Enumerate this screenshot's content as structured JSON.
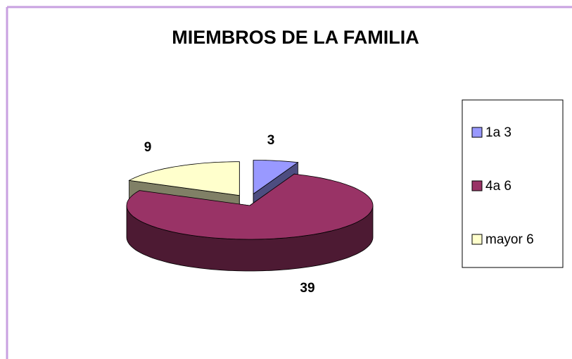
{
  "chart_data": {
    "type": "pie3d",
    "title": "MIEMBROS DE LA FAMILIA",
    "categories": [
      "1a 3",
      "4a 6",
      "mayor 6"
    ],
    "values": [
      3,
      39,
      9
    ],
    "colors": [
      "#9999ff",
      "#993366",
      "#ffffcc"
    ],
    "legend": "right"
  }
}
